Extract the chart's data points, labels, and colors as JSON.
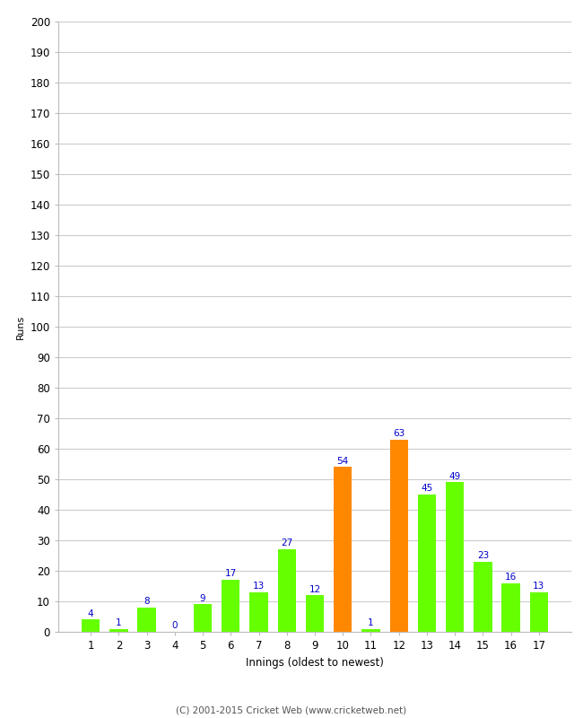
{
  "xlabel": "Innings (oldest to newest)",
  "ylabel": "Runs",
  "categories": [
    1,
    2,
    3,
    4,
    5,
    6,
    7,
    8,
    9,
    10,
    11,
    12,
    13,
    14,
    15,
    16,
    17
  ],
  "values": [
    4,
    1,
    8,
    0,
    9,
    17,
    13,
    27,
    12,
    54,
    1,
    63,
    45,
    49,
    23,
    16,
    13
  ],
  "colors": [
    "#66ff00",
    "#66ff00",
    "#66ff00",
    "#66ff00",
    "#66ff00",
    "#66ff00",
    "#66ff00",
    "#66ff00",
    "#66ff00",
    "#ff8800",
    "#66ff00",
    "#ff8800",
    "#66ff00",
    "#66ff00",
    "#66ff00",
    "#66ff00",
    "#66ff00"
  ],
  "ylim": [
    0,
    200
  ],
  "yticks": [
    0,
    10,
    20,
    30,
    40,
    50,
    60,
    70,
    80,
    90,
    100,
    110,
    120,
    130,
    140,
    150,
    160,
    170,
    180,
    190,
    200
  ],
  "label_color": "#0000cc",
  "background_color": "#ffffff",
  "footer": "(C) 2001-2015 Cricket Web (www.cricketweb.net)",
  "label_fontsize": 7.5,
  "axis_fontsize": 8.5,
  "ylabel_fontsize": 8,
  "xlabel_fontsize": 8.5,
  "grid_color": "#cccccc",
  "bar_width": 0.65
}
